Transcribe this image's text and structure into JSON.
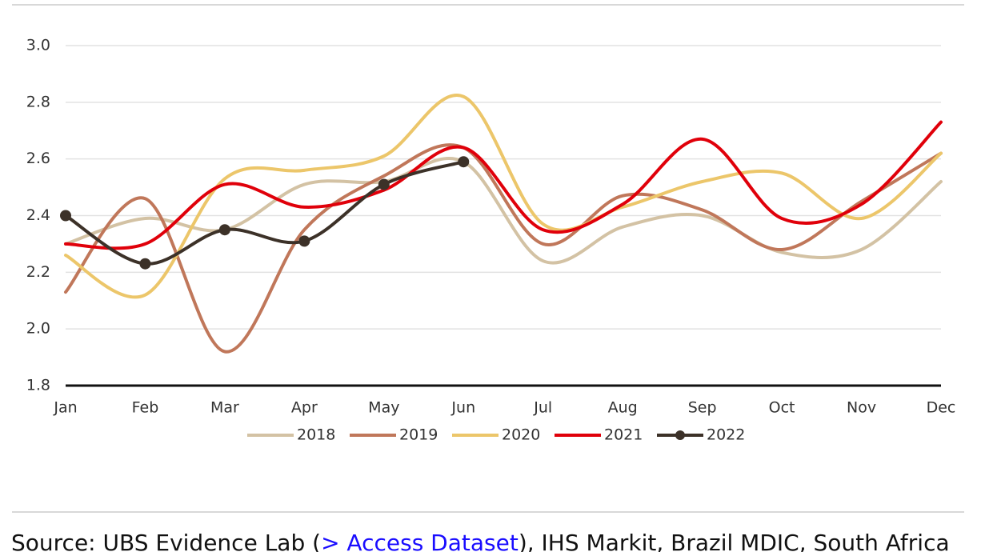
{
  "chart_data": {
    "type": "line",
    "categories": [
      "Jan",
      "Feb",
      "Mar",
      "Apr",
      "May",
      "Jun",
      "Jul",
      "Aug",
      "Sep",
      "Oct",
      "Nov",
      "Dec"
    ],
    "series": [
      {
        "name": "2018",
        "color": "#d3c2a4",
        "values": [
          2.3,
          2.39,
          2.35,
          2.51,
          2.52,
          2.59,
          2.24,
          2.36,
          2.4,
          2.27,
          2.28,
          2.52
        ]
      },
      {
        "name": "2019",
        "color": "#c0775a",
        "values": [
          2.13,
          2.46,
          1.92,
          2.35,
          2.54,
          2.64,
          2.3,
          2.47,
          2.42,
          2.28,
          2.45,
          2.62
        ]
      },
      {
        "name": "2020",
        "color": "#ecc66a",
        "values": [
          2.26,
          2.12,
          2.53,
          2.56,
          2.61,
          2.82,
          2.37,
          2.43,
          2.52,
          2.55,
          2.39,
          2.62
        ]
      },
      {
        "name": "2021",
        "color": "#e0000a",
        "values": [
          2.3,
          2.3,
          2.51,
          2.43,
          2.49,
          2.64,
          2.35,
          2.44,
          2.67,
          2.39,
          2.44,
          2.73
        ]
      },
      {
        "name": "2022",
        "color": "#3c3128",
        "markers": true,
        "values": [
          2.4,
          2.23,
          2.35,
          2.31,
          2.51,
          2.59,
          null,
          null,
          null,
          null,
          null,
          null
        ]
      }
    ],
    "ylim": [
      1.8,
      3.0
    ],
    "yticks": [
      {
        "value": 1.8,
        "label": "1.8"
      },
      {
        "value": 2.0,
        "label": "2.0"
      },
      2.2,
      2.4,
      2.6,
      2.8,
      {
        "value": 3.0,
        "label": "3.0"
      }
    ],
    "grid": true,
    "legend": "bottom",
    "smooth": true
  },
  "source": {
    "prefix": "Source: UBS Evidence Lab (",
    "link": "> Access Dataset",
    "suffix": "), IHS Markit, Brazil MDIC, South Africa"
  }
}
